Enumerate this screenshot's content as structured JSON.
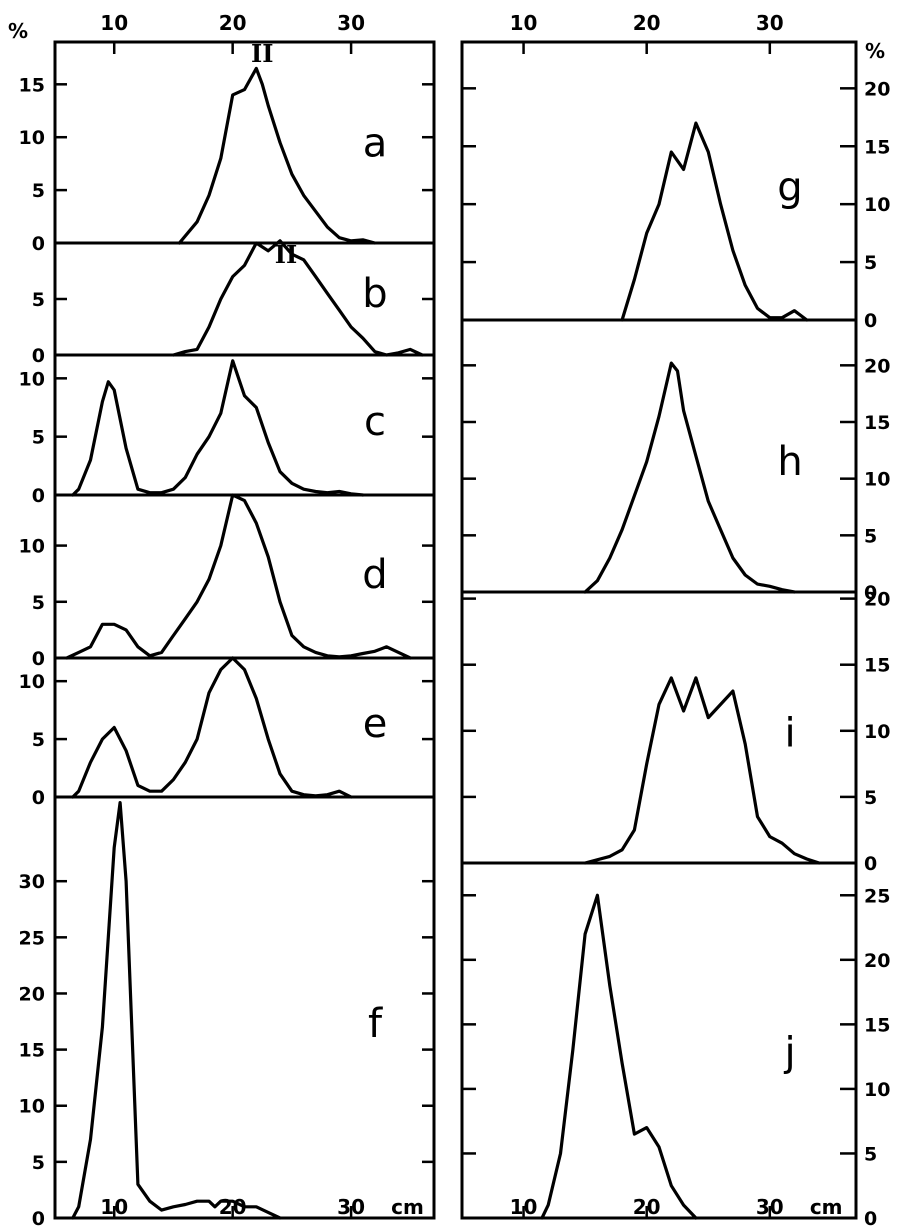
{
  "chart_data": {
    "type": "line",
    "x_unit_label": "cm",
    "y_unit_label": "%",
    "xlim": [
      5,
      37
    ],
    "x_ticks": [
      10,
      20,
      30
    ],
    "columns": [
      {
        "panels": [
          {
            "label": "a",
            "ylim": [
              0,
              19
            ],
            "y_ticks": [
              0,
              5,
              10,
              15
            ],
            "annotation": "II",
            "annotation_x": 22.5,
            "x": [
              15.5,
              17,
              18,
              19,
              20,
              21,
              22,
              22.5,
              23,
              24,
              25,
              26,
              27,
              28,
              29,
              30,
              31,
              32
            ],
            "y": [
              0,
              2,
              4.5,
              8,
              14,
              14.5,
              16.5,
              15,
              13,
              9.5,
              6.5,
              4.5,
              3,
              1.5,
              0.5,
              0.2,
              0.3,
              0
            ]
          },
          {
            "label": "b",
            "ylim": [
              0,
              10
            ],
            "y_ticks": [
              0,
              5
            ],
            "annotation": "II",
            "annotation_x": 24.5,
            "x": [
              15,
              16,
              17,
              18,
              19,
              20,
              21,
              22,
              23,
              24,
              25,
              26,
              27,
              28,
              29,
              30,
              31,
              32,
              33,
              34,
              35,
              36
            ],
            "y": [
              0,
              0.3,
              0.5,
              2.5,
              5,
              7,
              8,
              10,
              9.3,
              10.2,
              9,
              8.5,
              7,
              5.5,
              4,
              2.5,
              1.5,
              0.3,
              0,
              0.2,
              0.5,
              0
            ]
          },
          {
            "label": "c",
            "ylim": [
              0,
              12
            ],
            "y_ticks": [
              0,
              5,
              10
            ],
            "x": [
              6.5,
              7,
              8,
              9,
              9.5,
              10,
              11,
              12,
              13,
              14,
              15,
              16,
              17,
              18,
              19,
              20,
              21,
              22,
              23,
              24,
              25,
              26,
              27,
              28,
              29,
              30,
              31
            ],
            "y": [
              0,
              0.5,
              3,
              8,
              9.7,
              9,
              4,
              0.5,
              0.2,
              0.2,
              0.5,
              1.5,
              3.5,
              5,
              7,
              11.5,
              8.5,
              7.5,
              4.5,
              2,
              1,
              0.5,
              0.3,
              0.2,
              0.3,
              0.1,
              0
            ]
          },
          {
            "label": "d",
            "ylim": [
              0,
              14.5
            ],
            "y_ticks": [
              0,
              5,
              10
            ],
            "x": [
              6,
              7,
              8,
              9,
              10,
              11,
              12,
              13,
              14,
              15,
              16,
              17,
              18,
              19,
              20,
              21,
              22,
              23,
              24,
              25,
              26,
              27,
              28,
              29,
              30,
              31,
              32,
              33,
              34,
              35
            ],
            "y": [
              0,
              0.5,
              1,
              3,
              3,
              2.5,
              1,
              0.2,
              0.5,
              2,
              3.5,
              5,
              7,
              10,
              14.5,
              14,
              12,
              9,
              5,
              2,
              1,
              0.5,
              0.2,
              0.1,
              0.2,
              0.4,
              0.6,
              1,
              0.5,
              0
            ]
          },
          {
            "label": "e",
            "ylim": [
              0,
              12
            ],
            "y_ticks": [
              0,
              5,
              10
            ],
            "x": [
              6.5,
              7,
              8,
              9,
              10,
              11,
              12,
              13,
              14,
              15,
              16,
              17,
              18,
              19,
              20,
              21,
              22,
              23,
              24,
              25,
              26,
              27,
              28,
              29,
              30
            ],
            "y": [
              0,
              0.5,
              3,
              5,
              6,
              4,
              1,
              0.5,
              0.5,
              1.5,
              3,
              5,
              9,
              11,
              12,
              11,
              8.5,
              5,
              2,
              0.5,
              0.2,
              0.1,
              0.2,
              0.5,
              0
            ]
          },
          {
            "label": "f",
            "ylim": [
              0,
              37.5
            ],
            "y_ticks": [
              0,
              5,
              10,
              15,
              20,
              25,
              30
            ],
            "x": [
              6.5,
              7,
              8,
              9,
              10,
              10.5,
              11,
              12,
              13,
              14,
              15,
              16,
              17,
              18,
              18.5,
              19,
              20,
              21,
              22,
              23,
              24
            ],
            "y": [
              0,
              1,
              7,
              17,
              33,
              37,
              30,
              3,
              1.5,
              0.7,
              1,
              1.2,
              1.5,
              1.5,
              1,
              1.5,
              1.5,
              1,
              1,
              0.5,
              0
            ]
          }
        ]
      },
      {
        "panels": [
          {
            "label": "g",
            "ylim": [
              0,
              24
            ],
            "y_ticks": [
              0,
              5,
              10,
              15,
              20
            ],
            "x": [
              18,
              19,
              20,
              21,
              22,
              23,
              24,
              25,
              26,
              27,
              28,
              29,
              30,
              31,
              32,
              33
            ],
            "y": [
              0,
              3.5,
              7.5,
              10,
              14.5,
              13,
              17,
              14.5,
              10,
              6,
              3,
              1,
              0.2,
              0.2,
              0.8,
              0
            ],
            "ylim_note": "left-side unlabeled ticks at 5,10,15,20"
          },
          {
            "label": "h",
            "ylim": [
              0,
              24
            ],
            "y_ticks": [
              0,
              5,
              10,
              15,
              20
            ],
            "x": [
              15,
              16,
              17,
              18,
              19,
              20,
              21,
              22,
              22.5,
              23,
              24,
              25,
              26,
              27,
              28,
              29,
              30,
              31,
              32
            ],
            "y": [
              0,
              1,
              3,
              5.5,
              8.5,
              11.5,
              15.5,
              20.2,
              19.5,
              16,
              12,
              8,
              5.5,
              3,
              1.5,
              0.7,
              0.5,
              0.2,
              0
            ]
          },
          {
            "label": "i",
            "ylim": [
              0,
              20.5
            ],
            "y_ticks": [
              0,
              5,
              10,
              15,
              20
            ],
            "x": [
              15,
              17,
              18,
              19,
              20,
              21,
              22,
              23,
              24,
              25,
              26,
              27,
              28,
              29,
              30,
              31,
              32,
              33,
              34
            ],
            "y": [
              0,
              0.5,
              1,
              2.5,
              7.5,
              12,
              14,
              11.5,
              14,
              11,
              12,
              13,
              9,
              3.5,
              2,
              1.5,
              0.7,
              0.3,
              0
            ]
          },
          {
            "label": "j",
            "ylim": [
              0,
              27.5
            ],
            "y_ticks": [
              0,
              5,
              10,
              15,
              20,
              25
            ],
            "x": [
              11.5,
              12,
              13,
              14,
              15,
              16,
              17,
              18,
              19,
              20,
              21,
              22,
              23,
              24
            ],
            "y": [
              0,
              1,
              5,
              13,
              22,
              25,
              18,
              12,
              6.5,
              7,
              5.5,
              2.5,
              1,
              0
            ]
          }
        ]
      }
    ]
  }
}
